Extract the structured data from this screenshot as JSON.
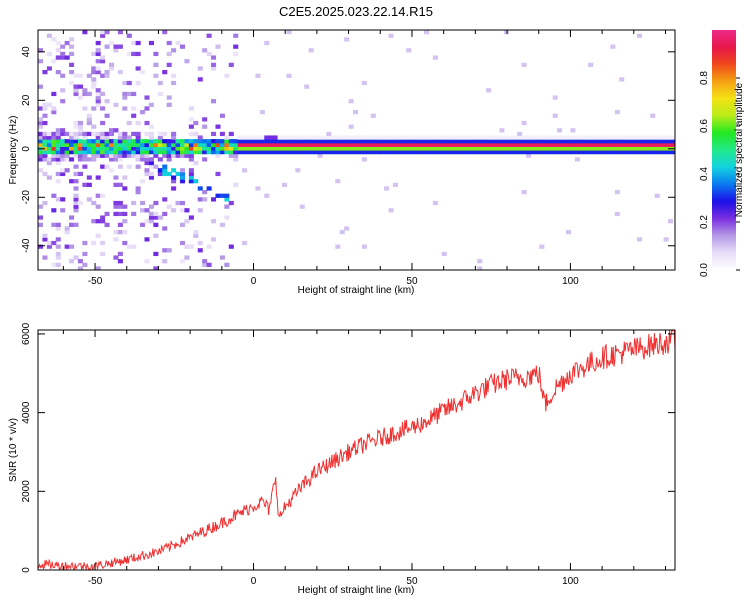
{
  "figure": {
    "title": "C2E5.2025.023.22.14.R15"
  },
  "chart_data": [
    {
      "type": "heatmap",
      "xlabel": "Height of straight line (km)",
      "ylabel": "Frequency (Hz)",
      "xlim": [
        -68,
        133
      ],
      "ylim": [
        -50,
        49
      ],
      "xticks": [
        -50,
        0,
        50,
        100
      ],
      "yticks": [
        -40,
        -20,
        0,
        20,
        40
      ],
      "grid": false,
      "colorbar": {
        "label": "Normalized spectral amplitude",
        "ticks": [
          "0.0",
          "0.2",
          "0.4",
          "0.6",
          "0.8"
        ],
        "range": [
          0,
          1
        ],
        "colormap": [
          "#ffffff",
          "#e8ddf7",
          "#b59ae6",
          "#7a2fe0",
          "#1c0fe8",
          "#0a7af0",
          "#12d3e0",
          "#22e88a",
          "#22e822",
          "#b8ec18",
          "#f4e214",
          "#f6a214",
          "#f0481a",
          "#e6164a",
          "#ee2a8a"
        ]
      },
      "features": {
        "main_band_frequency_hz": 0.5,
        "main_band_start_km": -6,
        "noisy_region_km": [
          -68,
          -6
        ],
        "high_amplitude_line": 0.95
      }
    },
    {
      "type": "line",
      "xlabel": "Height of straight line (km)",
      "ylabel": "SNR (10 * v/v)",
      "xlim": [
        -68,
        133
      ],
      "ylim": [
        0,
        6100
      ],
      "xticks": [
        -50,
        0,
        50,
        100
      ],
      "yticks": [
        0,
        2000,
        4000,
        6000
      ],
      "grid": false,
      "series": [
        {
          "color": "#f03030",
          "points": [
            [
              -68,
              150
            ],
            [
              -60,
              110
            ],
            [
              -50,
              100
            ],
            [
              -40,
              260
            ],
            [
              -30,
              470
            ],
            [
              -20,
              820
            ],
            [
              -10,
              1200
            ],
            [
              -3,
              1500
            ],
            [
              3,
              1750
            ],
            [
              5,
              1500
            ],
            [
              7,
              2400
            ],
            [
              8,
              1300
            ],
            [
              10,
              1600
            ],
            [
              15,
              2100
            ],
            [
              20,
              2500
            ],
            [
              25,
              2750
            ],
            [
              30,
              3000
            ],
            [
              35,
              3200
            ],
            [
              40,
              3350
            ],
            [
              45,
              3500
            ],
            [
              50,
              3620
            ],
            [
              55,
              3800
            ],
            [
              60,
              4050
            ],
            [
              65,
              4250
            ],
            [
              70,
              4500
            ],
            [
              75,
              4700
            ],
            [
              80,
              4850
            ],
            [
              85,
              4900
            ],
            [
              90,
              5000
            ],
            [
              92,
              4200
            ],
            [
              95,
              4600
            ],
            [
              100,
              5000
            ],
            [
              105,
              5200
            ],
            [
              110,
              5400
            ],
            [
              115,
              5500
            ],
            [
              120,
              5600
            ],
            [
              125,
              5700
            ],
            [
              133,
              5850
            ]
          ],
          "noise_amplitude": 220
        }
      ]
    }
  ]
}
